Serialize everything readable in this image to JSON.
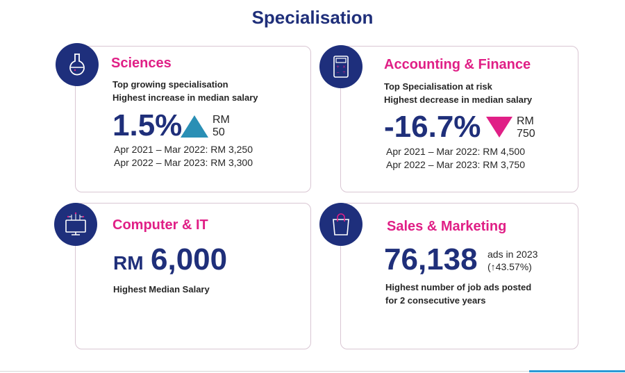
{
  "page": {
    "title": "Specialisation"
  },
  "cards": {
    "sciences": {
      "heading": "Sciences",
      "sub1": "Top growing specialisation",
      "sub2": "Highest increase in median salary",
      "big": "1.5%",
      "change_rm": "RM",
      "change_value": "50",
      "period1": "Apr 2021 – Mar 2022:  RM 3,250",
      "period2": "Apr 2022 – Mar 2023: RM 3,300",
      "trend": "up",
      "trend_color": "#2a8fb5"
    },
    "accounting": {
      "heading": "Accounting & Finance",
      "sub1": "Top Specialisation at risk",
      "sub2": "Highest decrease in median salary",
      "big": "-16.7%",
      "change_rm": "RM",
      "change_value": "750",
      "period1": "Apr 2021 – Mar 2022: RM 4,500",
      "period2": "Apr 2022 – Mar 2023: RM 3,750",
      "trend": "down",
      "trend_color": "#e01f86"
    },
    "computer": {
      "heading": "Computer & IT",
      "big_prefix": "RM",
      "big": "6,000",
      "caption": "Highest Median Salary"
    },
    "sales": {
      "heading": "Sales & Marketing",
      "big": "76,138",
      "ads1": "ads in 2023",
      "ads2": "(↑43.57%)",
      "caption1": "Highest number of job ads posted",
      "caption2": "for 2 consecutive years"
    }
  },
  "colors": {
    "navy": "#1e2f7c",
    "pink": "#e01f86",
    "teal": "#2a8fb5"
  },
  "icons": [
    "flask-icon",
    "calculator-icon",
    "computer-icon",
    "shopping-bag-icon"
  ]
}
